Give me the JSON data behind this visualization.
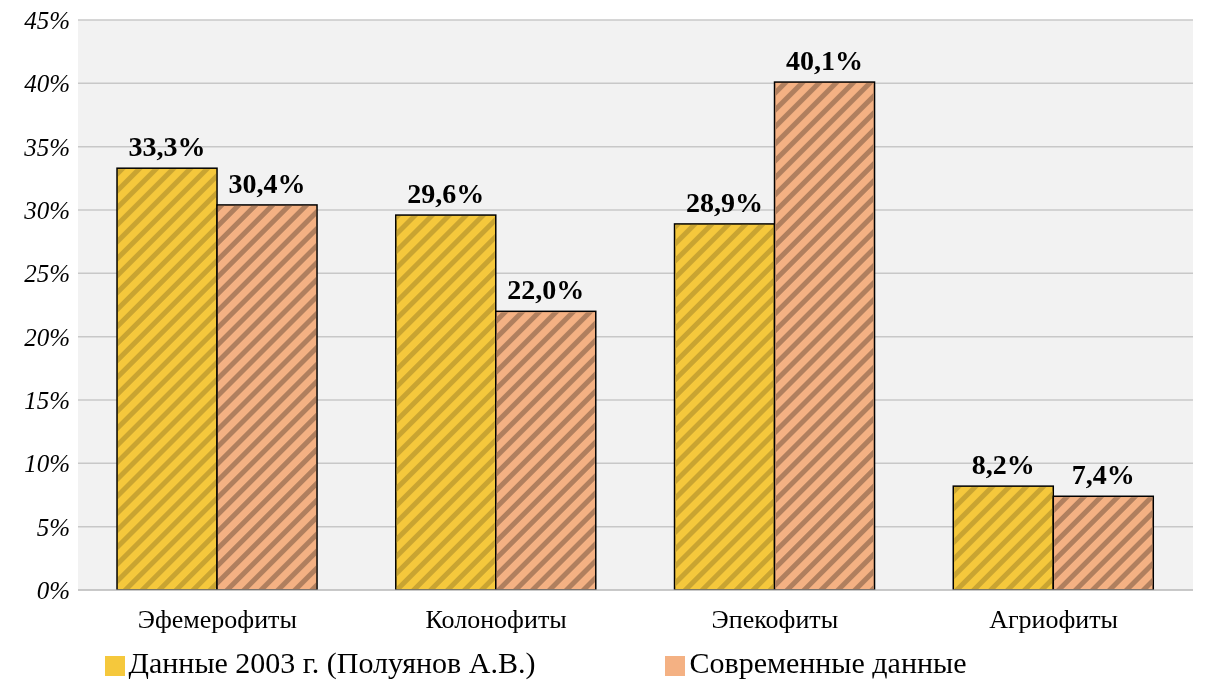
{
  "chart_data": {
    "type": "bar",
    "categories": [
      "Эфемерофиты",
      "Колонофиты",
      "Эпекофиты",
      "Агриофиты"
    ],
    "series": [
      {
        "name": "Данные 2003 г. (Полуянов А.В.)",
        "color": "#f5c83c",
        "values": [
          33.3,
          29.6,
          28.9,
          8.2
        ],
        "value_labels": [
          "33,3%",
          "29,6%",
          "28,9%",
          "8,2%"
        ]
      },
      {
        "name": "Современные данные",
        "color": "#f4b183",
        "values": [
          30.4,
          22.0,
          40.1,
          7.4
        ],
        "value_labels": [
          "30,4%",
          "22,0%",
          "40,1%",
          "7,4%"
        ]
      }
    ],
    "ylim": [
      0,
      45
    ],
    "yticks": [
      {
        "value": 0,
        "label": "0%"
      },
      {
        "value": 5,
        "label": "5%"
      },
      {
        "value": 10,
        "label": "10%"
      },
      {
        "value": 15,
        "label": "15%"
      },
      {
        "value": 20,
        "label": "20%"
      },
      {
        "value": 25,
        "label": "25%"
      },
      {
        "value": 30,
        "label": "30%"
      },
      {
        "value": 35,
        "label": "35%"
      },
      {
        "value": 40,
        "label": "40%"
      },
      {
        "value": 45,
        "label": "45%"
      }
    ],
    "grid": "y",
    "legend": "bottom"
  }
}
